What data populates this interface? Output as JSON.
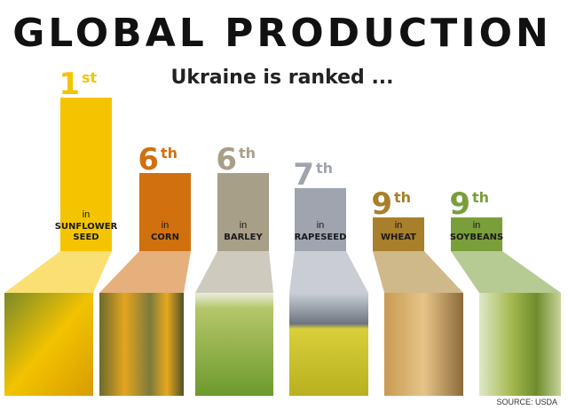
{
  "title": "GLOBAL PRODUCTION",
  "subtitle": "Ukraine is ranked  ...",
  "source": "SOURCE: USDA",
  "items": [
    {
      "rank": "1",
      "suffix": "st",
      "prefix": "in",
      "crop": [
        "SUNFLOWER",
        "SEED"
      ],
      "color": "#f5c400"
    },
    {
      "rank": "6",
      "suffix": "th",
      "prefix": "in",
      "crop": [
        "CORN"
      ],
      "color": "#d0700f"
    },
    {
      "rank": "6",
      "suffix": "th",
      "prefix": "in",
      "crop": [
        "BARLEY"
      ],
      "color": "#a89f88"
    },
    {
      "rank": "7",
      "suffix": "th",
      "prefix": "in",
      "crop": [
        "RAPESEED"
      ],
      "color": "#9fa4ae"
    },
    {
      "rank": "9",
      "suffix": "th",
      "prefix": "in",
      "crop": [
        "WHEAT"
      ],
      "color": "#a87f2a"
    },
    {
      "rank": "9",
      "suffix": "th",
      "prefix": "in",
      "crop": [
        "SOYBEANS"
      ],
      "color": "#7a9e3a"
    }
  ]
}
